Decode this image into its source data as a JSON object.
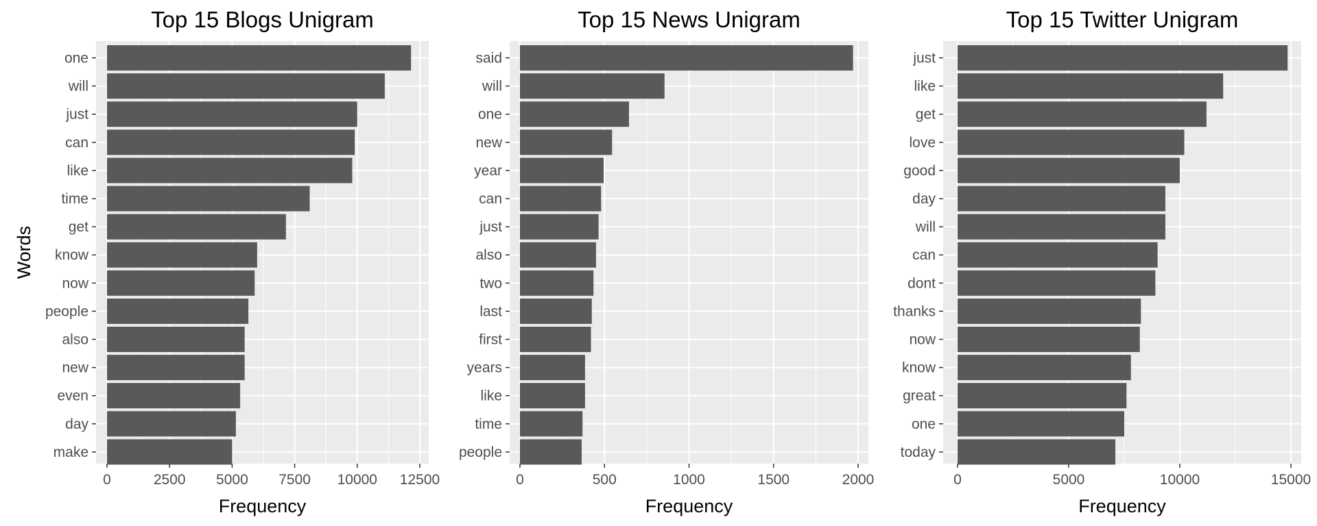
{
  "chart_data": [
    {
      "type": "bar",
      "orientation": "horizontal",
      "title": "Top 15 Blogs Unigram",
      "xlabel": "Frequency",
      "ylabel": "Words",
      "xlim": [
        0,
        12500
      ],
      "xticks": [
        0,
        2500,
        5000,
        7500,
        10000,
        12500
      ],
      "xtick_labels": [
        "0",
        "2500",
        "5000",
        "7500",
        "10000",
        "12500"
      ],
      "grid": true,
      "bar_color": "#595959",
      "panel_color": "#ebebeb",
      "categories": [
        "one",
        "will",
        "just",
        "can",
        "like",
        "time",
        "get",
        "know",
        "now",
        "people",
        "also",
        "new",
        "even",
        "day",
        "make"
      ],
      "values": [
        12150,
        11100,
        10000,
        9900,
        9800,
        8100,
        7150,
        6000,
        5900,
        5650,
        5500,
        5500,
        5320,
        5150,
        5000
      ]
    },
    {
      "type": "bar",
      "orientation": "horizontal",
      "title": "Top 15 News Unigram",
      "xlabel": "Frequency",
      "ylabel": "",
      "xlim": [
        0,
        2000
      ],
      "xticks": [
        0,
        500,
        1000,
        1500,
        2000
      ],
      "xtick_labels": [
        "0",
        "500",
        "1000",
        "1500",
        "2000"
      ],
      "grid": true,
      "bar_color": "#595959",
      "panel_color": "#ebebeb",
      "categories": [
        "said",
        "will",
        "one",
        "new",
        "year",
        "can",
        "just",
        "also",
        "two",
        "last",
        "first",
        "years",
        "like",
        "time",
        "people"
      ],
      "values": [
        1970,
        855,
        645,
        545,
        495,
        480,
        465,
        450,
        435,
        425,
        420,
        385,
        385,
        370,
        365
      ]
    },
    {
      "type": "bar",
      "orientation": "horizontal",
      "title": "Top 15 Twitter Unigram",
      "xlabel": "Frequency",
      "ylabel": "",
      "xlim": [
        0,
        15000
      ],
      "xticks": [
        0,
        5000,
        10000,
        15000
      ],
      "xtick_labels": [
        "0",
        "5000",
        "10000",
        "15000"
      ],
      "grid": true,
      "bar_color": "#595959",
      "panel_color": "#ebebeb",
      "categories": [
        "just",
        "like",
        "get",
        "love",
        "good",
        "day",
        "will",
        "can",
        "dont",
        "thanks",
        "now",
        "know",
        "great",
        "one",
        "today"
      ],
      "values": [
        14850,
        11950,
        11200,
        10200,
        10000,
        9350,
        9350,
        9000,
        8900,
        8250,
        8200,
        7800,
        7600,
        7500,
        7100
      ]
    }
  ]
}
